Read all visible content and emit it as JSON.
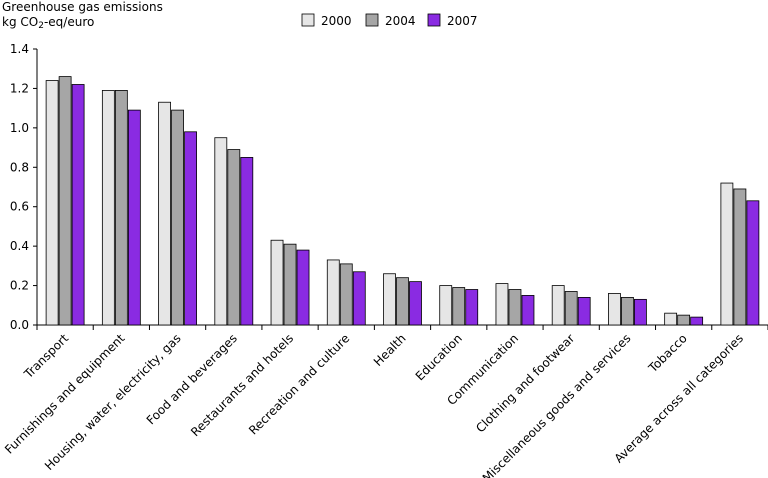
{
  "chart_data": {
    "type": "bar",
    "ylabel_line1": "Greenhouse gas emissions",
    "ylabel_line2_prefix": "kg CO",
    "ylabel_line2_sub": "2",
    "ylabel_line2_suffix": "-eq/euro",
    "ylim": [
      0,
      1.4
    ],
    "yticks": [
      "0.0",
      "0.2",
      "0.4",
      "0.6",
      "0.8",
      "1.0",
      "1.2",
      "1.4"
    ],
    "grid": false,
    "legend_position": "top",
    "categories": [
      "Transport",
      "Furnishings and equipment",
      "Housing, water, electricity, gas",
      "Food and beverages",
      "Restaurants and hotels",
      "Recreation and culture",
      "Health",
      "Education",
      "Communication",
      "Clothing and footwear",
      "Miscellaneous goods and services",
      "Tobacco",
      "Average across all categories"
    ],
    "series": [
      {
        "name": "2000",
        "color": "#e6e6e6",
        "values": [
          1.24,
          1.19,
          1.13,
          0.95,
          0.43,
          0.33,
          0.26,
          0.2,
          0.21,
          0.2,
          0.16,
          0.06,
          0.72
        ]
      },
      {
        "name": "2004",
        "color": "#a6a6a6",
        "values": [
          1.26,
          1.19,
          1.09,
          0.89,
          0.41,
          0.31,
          0.24,
          0.19,
          0.18,
          0.17,
          0.14,
          0.05,
          0.69
        ]
      },
      {
        "name": "2007",
        "color": "#8a2be2",
        "values": [
          1.22,
          1.09,
          0.98,
          0.85,
          0.38,
          0.27,
          0.22,
          0.18,
          0.15,
          0.14,
          0.13,
          0.04,
          0.63
        ]
      }
    ]
  }
}
